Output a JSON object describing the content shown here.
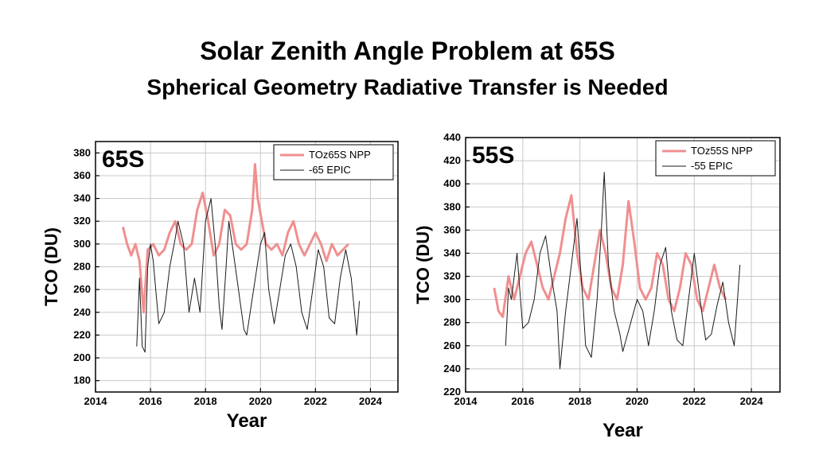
{
  "slide": {
    "title": "Solar Zenith Angle Problem at 65S",
    "subtitle": "Spherical Geometry Radiative Transfer is Needed"
  },
  "colors": {
    "npp": "#f08f8f",
    "epic": "#1a1a1a",
    "grid": "#c8c8c8"
  },
  "chart_data": [
    {
      "type": "line",
      "panel_label": "65S",
      "xlabel": "Year",
      "ylabel": "TCO (DU)",
      "xlim": [
        2014,
        2025
      ],
      "ylim": [
        170,
        390
      ],
      "xticks": [
        2014,
        2016,
        2018,
        2020,
        2022,
        2024
      ],
      "yticks": [
        180,
        200,
        220,
        240,
        260,
        280,
        300,
        320,
        340,
        360,
        380
      ],
      "grid": true,
      "legend_position": "top-right",
      "series": [
        {
          "name": "TOz65S NPP",
          "color": "#f08f8f",
          "x": [
            2015.0,
            2015.15,
            2015.3,
            2015.45,
            2015.6,
            2015.75,
            2015.9,
            2016.1,
            2016.3,
            2016.5,
            2016.7,
            2016.9,
            2017.1,
            2017.3,
            2017.5,
            2017.7,
            2017.9,
            2018.1,
            2018.3,
            2018.5,
            2018.7,
            2018.9,
            2019.1,
            2019.3,
            2019.5,
            2019.7,
            2019.8,
            2019.9,
            2020.05,
            2020.2,
            2020.4,
            2020.6,
            2020.8,
            2021.0,
            2021.2,
            2021.4,
            2021.6,
            2021.8,
            2022.0,
            2022.2,
            2022.4,
            2022.6,
            2022.8,
            2023.0,
            2023.2
          ],
          "y": [
            315,
            300,
            290,
            300,
            285,
            240,
            295,
            300,
            290,
            295,
            310,
            320,
            300,
            295,
            300,
            330,
            345,
            320,
            290,
            300,
            330,
            325,
            300,
            295,
            300,
            330,
            370,
            340,
            320,
            300,
            295,
            300,
            290,
            310,
            320,
            300,
            290,
            300,
            310,
            300,
            285,
            300,
            290,
            295,
            300
          ]
        },
        {
          "name": "-65 EPIC",
          "color": "#1a1a1a",
          "x": [
            2015.5,
            2015.6,
            2015.7,
            2015.8,
            2015.9,
            2016.0,
            2016.1,
            2016.3,
            2016.5,
            2016.7,
            2016.9,
            2017.0,
            2017.2,
            2017.4,
            2017.6,
            2017.8,
            2018.0,
            2018.2,
            2018.35,
            2018.5,
            2018.6,
            2018.75,
            2018.85,
            2019.0,
            2019.2,
            2019.4,
            2019.5,
            2020.0,
            2020.15,
            2020.3,
            2020.5,
            2020.7,
            2020.9,
            2021.1,
            2021.3,
            2021.5,
            2021.7,
            2021.9,
            2022.1,
            2022.3,
            2022.5,
            2022.7,
            2022.9,
            2023.1,
            2023.3,
            2023.5,
            2023.6
          ],
          "y": [
            210,
            270,
            210,
            205,
            280,
            300,
            285,
            230,
            240,
            280,
            305,
            320,
            300,
            240,
            270,
            240,
            320,
            340,
            300,
            245,
            225,
            280,
            320,
            295,
            260,
            225,
            220,
            300,
            310,
            260,
            230,
            260,
            290,
            300,
            280,
            240,
            225,
            260,
            295,
            280,
            235,
            230,
            270,
            295,
            270,
            220,
            250
          ]
        }
      ]
    },
    {
      "type": "line",
      "panel_label": "55S",
      "xlabel": "Year",
      "ylabel": "TCO (DU)",
      "xlim": [
        2014,
        2025
      ],
      "ylim": [
        220,
        440
      ],
      "xticks": [
        2014,
        2016,
        2018,
        2020,
        2022,
        2024
      ],
      "yticks": [
        220,
        240,
        260,
        280,
        300,
        320,
        340,
        360,
        380,
        400,
        420,
        440
      ],
      "grid": true,
      "legend_position": "top-right",
      "series": [
        {
          "name": "TOz55S NPP",
          "color": "#f08f8f",
          "x": [
            2015.0,
            2015.15,
            2015.3,
            2015.5,
            2015.7,
            2015.9,
            2016.1,
            2016.3,
            2016.5,
            2016.7,
            2016.9,
            2017.1,
            2017.3,
            2017.5,
            2017.7,
            2017.9,
            2018.1,
            2018.3,
            2018.5,
            2018.7,
            2018.9,
            2019.1,
            2019.3,
            2019.5,
            2019.7,
            2019.9,
            2020.1,
            2020.3,
            2020.5,
            2020.7,
            2020.9,
            2021.1,
            2021.3,
            2021.5,
            2021.7,
            2021.9,
            2022.1,
            2022.3,
            2022.5,
            2022.7,
            2022.9,
            2023.1
          ],
          "y": [
            310,
            290,
            285,
            320,
            300,
            320,
            340,
            350,
            330,
            310,
            300,
            320,
            340,
            370,
            390,
            340,
            310,
            300,
            330,
            360,
            340,
            310,
            300,
            330,
            385,
            350,
            310,
            300,
            310,
            340,
            330,
            300,
            290,
            310,
            340,
            330,
            300,
            290,
            310,
            330,
            310,
            300
          ]
        },
        {
          "name": "-55 EPIC",
          "color": "#1a1a1a",
          "x": [
            2015.4,
            2015.5,
            2015.6,
            2015.8,
            2016.0,
            2016.2,
            2016.4,
            2016.6,
            2016.8,
            2017.0,
            2017.2,
            2017.3,
            2017.5,
            2017.7,
            2017.9,
            2018.1,
            2018.2,
            2018.4,
            2018.6,
            2018.75,
            2018.85,
            2019.0,
            2019.2,
            2019.4,
            2019.5,
            2020.0,
            2020.2,
            2020.4,
            2020.6,
            2020.8,
            2021.0,
            2021.2,
            2021.4,
            2021.6,
            2021.8,
            2022.0,
            2022.2,
            2022.4,
            2022.6,
            2022.8,
            2023.0,
            2023.2,
            2023.4,
            2023.6
          ],
          "y": [
            260,
            310,
            300,
            340,
            275,
            280,
            300,
            340,
            355,
            320,
            290,
            240,
            290,
            330,
            370,
            300,
            260,
            250,
            300,
            360,
            410,
            330,
            290,
            270,
            255,
            300,
            290,
            260,
            290,
            330,
            345,
            290,
            265,
            260,
            300,
            340,
            300,
            265,
            270,
            295,
            315,
            280,
            260,
            330
          ]
        }
      ]
    }
  ]
}
